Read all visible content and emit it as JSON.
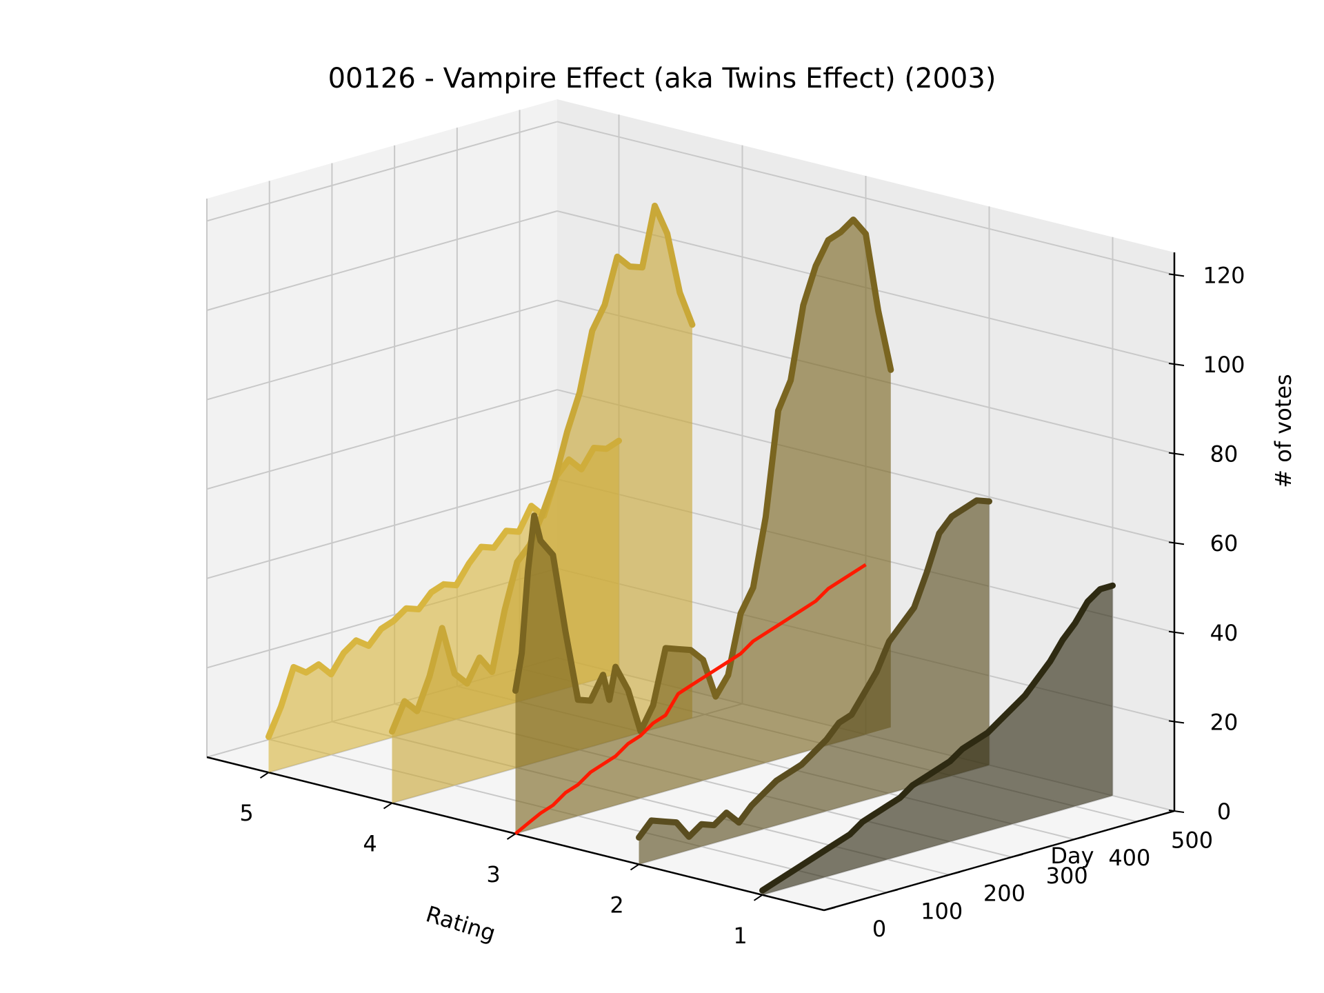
{
  "chart_data": {
    "type": "line",
    "subtype": "3d-waterfall-ridgeline",
    "title": "00126 - Vampire Effect (aka Twins Effect) (2003)",
    "xlabel": "Rating",
    "ylabel": "Day",
    "zlabel": "# of votes",
    "x_ticks": [
      "5",
      "4",
      "3",
      "2",
      "1"
    ],
    "y_ticks": [
      "0",
      "100",
      "200",
      "300",
      "400",
      "500"
    ],
    "z_ticks": [
      "0",
      "20",
      "40",
      "60",
      "80",
      "100",
      "120"
    ],
    "xlim": [
      0.5,
      5.5
    ],
    "ylim": [
      0,
      560
    ],
    "zlim": [
      0,
      125
    ],
    "grid": true,
    "series": [
      {
        "rating": 5,
        "color": "#d8b640",
        "points": [
          [
            0,
            8
          ],
          [
            20,
            14
          ],
          [
            40,
            22
          ],
          [
            60,
            20
          ],
          [
            80,
            21
          ],
          [
            100,
            18
          ],
          [
            120,
            22
          ],
          [
            140,
            24
          ],
          [
            160,
            22
          ],
          [
            180,
            25
          ],
          [
            200,
            26
          ],
          [
            220,
            28
          ],
          [
            240,
            27
          ],
          [
            260,
            30
          ],
          [
            280,
            31
          ],
          [
            300,
            30
          ],
          [
            320,
            34
          ],
          [
            340,
            37
          ],
          [
            360,
            36
          ],
          [
            380,
            39
          ],
          [
            400,
            38
          ],
          [
            420,
            43
          ],
          [
            440,
            40
          ],
          [
            460,
            48
          ],
          [
            480,
            51
          ],
          [
            500,
            48
          ],
          [
            520,
            52
          ],
          [
            540,
            51
          ],
          [
            560,
            52
          ]
        ]
      },
      {
        "rating": 4,
        "color": "#c9a838",
        "points": [
          [
            0,
            16
          ],
          [
            20,
            22
          ],
          [
            40,
            19
          ],
          [
            60,
            26
          ],
          [
            80,
            36
          ],
          [
            100,
            25
          ],
          [
            120,
            22
          ],
          [
            140,
            27
          ],
          [
            160,
            23
          ],
          [
            180,
            36
          ],
          [
            200,
            46
          ],
          [
            220,
            49
          ],
          [
            240,
            55
          ],
          [
            260,
            62
          ],
          [
            280,
            72
          ],
          [
            300,
            80
          ],
          [
            320,
            93
          ],
          [
            340,
            98
          ],
          [
            360,
            108
          ],
          [
            380,
            105
          ],
          [
            400,
            104
          ],
          [
            420,
            117
          ],
          [
            440,
            110
          ],
          [
            460,
            96
          ],
          [
            480,
            88
          ]
        ]
      },
      {
        "rating": 3,
        "color": "#7a6520",
        "points": [
          [
            0,
            32
          ],
          [
            10,
            40
          ],
          [
            20,
            58
          ],
          [
            30,
            70
          ],
          [
            40,
            64
          ],
          [
            60,
            60
          ],
          [
            80,
            42
          ],
          [
            100,
            26
          ],
          [
            120,
            25
          ],
          [
            140,
            30
          ],
          [
            150,
            24
          ],
          [
            160,
            31
          ],
          [
            180,
            25
          ],
          [
            200,
            15
          ],
          [
            220,
            20
          ],
          [
            240,
            32
          ],
          [
            260,
            31
          ],
          [
            280,
            30
          ],
          [
            300,
            27
          ],
          [
            320,
            18
          ],
          [
            340,
            22
          ],
          [
            360,
            35
          ],
          [
            380,
            40
          ],
          [
            400,
            55
          ],
          [
            420,
            78
          ],
          [
            440,
            84
          ],
          [
            460,
            100
          ],
          [
            480,
            108
          ],
          [
            500,
            113
          ],
          [
            520,
            114
          ],
          [
            540,
            116
          ],
          [
            560,
            112
          ],
          [
            580,
            94
          ],
          [
            600,
            80
          ]
        ]
      },
      {
        "rating": 2,
        "color": "#5a4d1f",
        "points": [
          [
            0,
            6
          ],
          [
            20,
            9
          ],
          [
            40,
            8
          ],
          [
            60,
            7
          ],
          [
            80,
            3
          ],
          [
            100,
            5
          ],
          [
            120,
            4
          ],
          [
            140,
            6
          ],
          [
            160,
            3
          ],
          [
            180,
            6
          ],
          [
            200,
            8
          ],
          [
            220,
            10
          ],
          [
            240,
            11
          ],
          [
            260,
            12
          ],
          [
            280,
            14
          ],
          [
            300,
            16
          ],
          [
            320,
            19
          ],
          [
            340,
            20
          ],
          [
            360,
            24
          ],
          [
            380,
            28
          ],
          [
            400,
            34
          ],
          [
            420,
            37
          ],
          [
            440,
            40
          ],
          [
            460,
            47
          ],
          [
            480,
            55
          ],
          [
            500,
            58
          ],
          [
            520,
            59
          ],
          [
            540,
            60
          ],
          [
            560,
            59
          ]
        ]
      },
      {
        "rating": 1,
        "color": "#2e2a12",
        "points": [
          [
            0,
            1
          ],
          [
            20,
            2
          ],
          [
            40,
            3
          ],
          [
            60,
            4
          ],
          [
            80,
            5
          ],
          [
            100,
            6
          ],
          [
            120,
            7
          ],
          [
            140,
            8
          ],
          [
            160,
            10
          ],
          [
            180,
            11
          ],
          [
            200,
            12
          ],
          [
            220,
            13
          ],
          [
            240,
            15
          ],
          [
            260,
            16
          ],
          [
            280,
            17
          ],
          [
            300,
            18
          ],
          [
            320,
            20
          ],
          [
            340,
            21
          ],
          [
            360,
            22
          ],
          [
            380,
            24
          ],
          [
            400,
            26
          ],
          [
            420,
            28
          ],
          [
            440,
            31
          ],
          [
            460,
            34
          ],
          [
            480,
            38
          ],
          [
            500,
            41
          ],
          [
            520,
            45
          ],
          [
            540,
            47
          ],
          [
            560,
            47
          ]
        ]
      },
      {
        "rating": "cumulative",
        "color": "#ff1a00",
        "points": [
          [
            0,
            0
          ],
          [
            20,
            1.5
          ],
          [
            40,
            3
          ],
          [
            60,
            4
          ],
          [
            80,
            6
          ],
          [
            100,
            7
          ],
          [
            120,
            9
          ],
          [
            140,
            10
          ],
          [
            160,
            11
          ],
          [
            180,
            13
          ],
          [
            200,
            14
          ],
          [
            220,
            16
          ],
          [
            240,
            17
          ],
          [
            260,
            21
          ],
          [
            280,
            22
          ],
          [
            300,
            23
          ],
          [
            320,
            24
          ],
          [
            340,
            25
          ],
          [
            360,
            26
          ],
          [
            380,
            28
          ],
          [
            400,
            29
          ],
          [
            420,
            30
          ],
          [
            440,
            31
          ],
          [
            460,
            32
          ],
          [
            480,
            33
          ],
          [
            500,
            35
          ],
          [
            520,
            36
          ],
          [
            540,
            37
          ],
          [
            560,
            38
          ]
        ]
      }
    ]
  }
}
